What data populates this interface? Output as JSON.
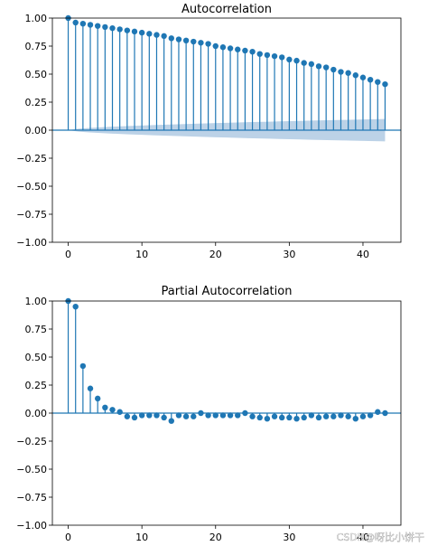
{
  "chart_data": [
    {
      "type": "stem",
      "title": "Autocorrelation",
      "xlabel": "",
      "ylabel": "",
      "xlim": [
        -2.15,
        45.15
      ],
      "ylim": [
        -1.0,
        1.0
      ],
      "xticks": [
        "0",
        "10",
        "20",
        "30",
        "40"
      ],
      "yticks": [
        "1.00",
        "0.75",
        "0.50",
        "0.25",
        "0.00",
        "−0.25",
        "−0.50",
        "−0.75",
        "−1.00"
      ],
      "x": [
        0,
        1,
        2,
        3,
        4,
        5,
        6,
        7,
        8,
        9,
        10,
        11,
        12,
        13,
        14,
        15,
        16,
        17,
        18,
        19,
        20,
        21,
        22,
        23,
        24,
        25,
        26,
        27,
        28,
        29,
        30,
        31,
        32,
        33,
        34,
        35,
        36,
        37,
        38,
        39,
        40,
        41,
        42,
        43
      ],
      "values": [
        1.0,
        0.96,
        0.95,
        0.94,
        0.93,
        0.92,
        0.91,
        0.9,
        0.89,
        0.88,
        0.87,
        0.86,
        0.85,
        0.84,
        0.82,
        0.81,
        0.8,
        0.79,
        0.78,
        0.77,
        0.75,
        0.74,
        0.73,
        0.72,
        0.71,
        0.7,
        0.68,
        0.67,
        0.66,
        0.65,
        0.63,
        0.62,
        0.6,
        0.59,
        0.57,
        0.56,
        0.54,
        0.52,
        0.51,
        0.49,
        0.47,
        0.45,
        0.43,
        0.41
      ],
      "confidence_band": {
        "x_start": 0,
        "x_end": 43,
        "half_width_start": 0.0,
        "half_width_end": 0.1
      },
      "colors": {
        "stem": "#1f77b4",
        "band": "#a6c3df"
      },
      "grid": false,
      "legend": "none"
    },
    {
      "type": "stem",
      "title": "Partial Autocorrelation",
      "xlabel": "",
      "ylabel": "",
      "xlim": [
        -2.15,
        45.15
      ],
      "ylim": [
        -1.0,
        1.0
      ],
      "xticks": [
        "0",
        "10",
        "20",
        "30",
        "40"
      ],
      "yticks": [
        "1.00",
        "0.75",
        "0.50",
        "0.25",
        "0.00",
        "−0.25",
        "−0.50",
        "−0.75",
        "−1.00"
      ],
      "x": [
        0,
        1,
        2,
        3,
        4,
        5,
        6,
        7,
        8,
        9,
        10,
        11,
        12,
        13,
        14,
        15,
        16,
        17,
        18,
        19,
        20,
        21,
        22,
        23,
        24,
        25,
        26,
        27,
        28,
        29,
        30,
        31,
        32,
        33,
        34,
        35,
        36,
        37,
        38,
        39,
        40,
        41,
        42,
        43
      ],
      "values": [
        1.0,
        0.95,
        0.42,
        0.22,
        0.13,
        0.05,
        0.03,
        0.01,
        -0.03,
        -0.04,
        -0.02,
        -0.02,
        -0.02,
        -0.04,
        -0.07,
        -0.02,
        -0.03,
        -0.03,
        0.0,
        -0.02,
        -0.02,
        -0.02,
        -0.02,
        -0.02,
        0.0,
        -0.03,
        -0.04,
        -0.05,
        -0.03,
        -0.04,
        -0.04,
        -0.05,
        -0.04,
        -0.02,
        -0.04,
        -0.03,
        -0.03,
        -0.02,
        -0.03,
        -0.05,
        -0.03,
        -0.02,
        0.01,
        0.0
      ],
      "colors": {
        "stem": "#1f77b4",
        "band": "#a6c3df"
      },
      "grid": false,
      "legend": "none"
    }
  ],
  "watermark": "CSDN@呀比小饼干"
}
